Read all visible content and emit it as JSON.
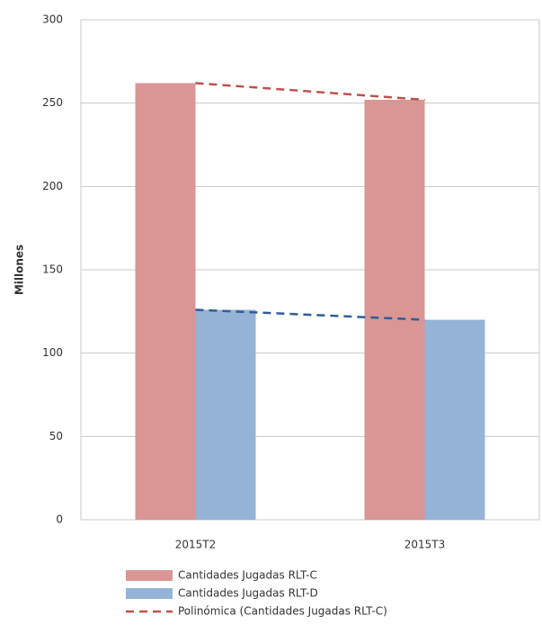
{
  "chart_data": {
    "type": "bar",
    "y_label": "Millones",
    "categories": [
      "2015T2",
      "2015T3"
    ],
    "series": [
      {
        "name": "Cantidades Jugadas  RLT-C",
        "color": "#d99694",
        "values": [
          262,
          252
        ]
      },
      {
        "name": "Cantidades Jugadas  RLT-D",
        "color": "#95b3d7",
        "values": [
          126,
          120
        ]
      }
    ],
    "trendlines": [
      {
        "name": "Polinómica (Cantidades Jugadas  RLT-C)",
        "series": 0,
        "color": "#c0504d"
      },
      {
        "series": 1,
        "color": "#2e5d99"
      }
    ],
    "ylim": [
      0,
      300
    ],
    "yticks": [
      0,
      50,
      100,
      150,
      200,
      250,
      300
    ],
    "grid": true
  }
}
